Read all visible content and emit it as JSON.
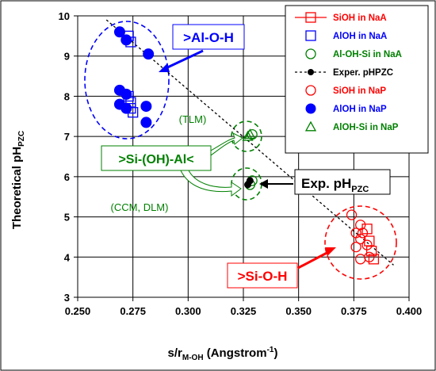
{
  "chart_data": {
    "type": "scatter",
    "xlabel_main": "s/r",
    "xlabel_sub": "M-OH",
    "xlabel_unit": " (Angstrom",
    "xlabel_sup": "-1",
    "xlabel_close": ")",
    "ylabel_main": "Theoretical pH",
    "ylabel_sub": "PZC",
    "xlim": [
      0.25,
      0.4
    ],
    "ylim": [
      3,
      10
    ],
    "x_ticks": [
      "0.250",
      "0.275",
      "0.300",
      "0.325",
      "0.350",
      "0.375",
      "0.400"
    ],
    "y_ticks": [
      "3",
      "4",
      "5",
      "6",
      "7",
      "8",
      "9",
      "10"
    ],
    "grid": true,
    "legend_position": "top-right",
    "series": [
      {
        "name": "SiOH in NaA",
        "color": "#ff0000",
        "marker": "square-open",
        "line": true,
        "points": [
          [
            0.381,
            4.7
          ],
          [
            0.382,
            4.4
          ],
          [
            0.383,
            4.15
          ],
          [
            0.384,
            3.95
          ]
        ]
      },
      {
        "name": "AlOH in NaA",
        "color": "#0000ff",
        "marker": "square-open",
        "line": false,
        "points": [
          [
            0.273,
            9.5
          ],
          [
            0.274,
            9.35
          ],
          [
            0.273,
            8.0
          ],
          [
            0.274,
            7.85
          ],
          [
            0.274,
            7.7
          ],
          [
            0.275,
            7.6
          ]
        ]
      },
      {
        "name": "Al-OH-Si in NaA",
        "color": "#008000",
        "marker": "circle-open",
        "line": false,
        "points": [
          [
            0.329,
            5.9
          ],
          [
            0.328,
            5.8
          ],
          [
            0.329,
            7.05
          ]
        ]
      },
      {
        "name": "Exper.  pHPZC",
        "color": "#000000",
        "marker": "circle-filled",
        "line": true,
        "dashed": true,
        "points": [
          [
            0.328,
            5.9
          ],
          [
            0.327,
            5.8
          ]
        ]
      },
      {
        "name": "SiOH  in NaP",
        "color": "#ff0000",
        "marker": "circle-open",
        "line": false,
        "points": [
          [
            0.374,
            5.05
          ],
          [
            0.376,
            4.6
          ],
          [
            0.376,
            4.25
          ],
          [
            0.378,
            4.8
          ],
          [
            0.378,
            4.45
          ],
          [
            0.378,
            3.95
          ],
          [
            0.379,
            4.6
          ],
          [
            0.381,
            4.3
          ],
          [
            0.382,
            4.0
          ]
        ]
      },
      {
        "name": "AlOH in NaP",
        "color": "#0000ff",
        "marker": "circle-filled",
        "line": false,
        "points": [
          [
            0.269,
            9.6
          ],
          [
            0.272,
            9.4
          ],
          [
            0.282,
            9.05
          ],
          [
            0.269,
            8.15
          ],
          [
            0.272,
            8.05
          ],
          [
            0.269,
            7.8
          ],
          [
            0.272,
            7.7
          ],
          [
            0.281,
            7.75
          ],
          [
            0.281,
            7.35
          ]
        ]
      },
      {
        "name": "AlOH-Si in  NaP",
        "color": "#008000",
        "marker": "triangle-open",
        "line": false,
        "points": [
          [
            0.328,
            7.05
          ],
          [
            0.327,
            7.0
          ]
        ]
      }
    ],
    "trend_line": {
      "from": [
        0.263,
        9.9
      ],
      "to": [
        0.393,
        3.8
      ],
      "color": "#000000"
    },
    "annotations": {
      "al_o_h": ">Al-O-H",
      "si_oh_al": ">Si-(OH)-Al<",
      "si_o_h": ">Si-O-H",
      "tlm": "(TLM)",
      "ccm": "(CCM, DLM)",
      "exp_main": "Exp. pH",
      "exp_sub": "PZC"
    },
    "colors": {
      "red": "#ff0000",
      "blue": "#0000ff",
      "green": "#008000",
      "black": "#000000"
    }
  }
}
